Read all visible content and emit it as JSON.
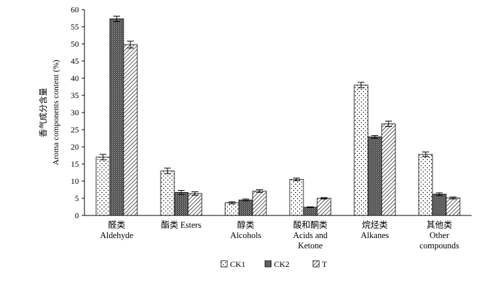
{
  "chart_data": {
    "type": "bar",
    "ylabel_cn": "香气成分含量",
    "ylabel_en": "Aroma components content (%)",
    "ylim": [
      0,
      60
    ],
    "yticks": [
      "0",
      "5",
      "10",
      "15",
      "20",
      "25",
      "30",
      "35",
      "40",
      "45",
      "50",
      "55",
      "60"
    ],
    "grid": false,
    "legend_position": "bottom-center",
    "categories": [
      {
        "line1": "醛类",
        "line2": "Aldehyde",
        "line3": ""
      },
      {
        "line1": "酯类 Esters",
        "line2": "",
        "line3": ""
      },
      {
        "line1": "醇类",
        "line2": "Alcohols",
        "line3": ""
      },
      {
        "line1": "酸和酮类",
        "line2": "Acids and",
        "line3": "Ketone"
      },
      {
        "line1": "烷烃类",
        "line2": "Alkanes",
        "line3": ""
      },
      {
        "line1": "其他类",
        "line2": "Other",
        "line3": "compounds"
      }
    ],
    "series": [
      {
        "name": "CK1",
        "pattern": "dots",
        "values": [
          17.0,
          13.0,
          3.7,
          10.5,
          38.0,
          17.8
        ],
        "errors": [
          0.8,
          0.8,
          0.3,
          0.4,
          0.8,
          0.7
        ]
      },
      {
        "name": "CK2",
        "pattern": "crosshatch",
        "values": [
          57.3,
          6.7,
          4.5,
          2.4,
          22.9,
          6.2
        ],
        "errors": [
          0.8,
          0.6,
          0.3,
          0.1,
          0.4,
          0.4
        ]
      },
      {
        "name": "T",
        "pattern": "diagonal",
        "values": [
          49.8,
          6.4,
          7.1,
          5.0,
          26.7,
          5.1
        ],
        "errors": [
          1.0,
          0.5,
          0.4,
          0.2,
          0.8,
          0.3
        ]
      }
    ]
  }
}
